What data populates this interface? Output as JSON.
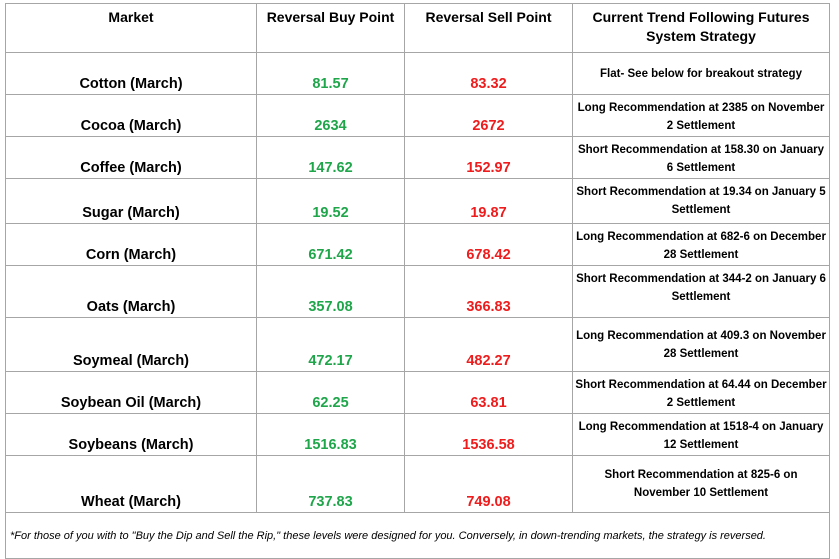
{
  "headers": {
    "market": "Market",
    "buy": "Reversal Buy Point",
    "sell": "Reversal Sell Point",
    "strategy_line1": "Current Trend Following Futures",
    "strategy_line2": "System Strategy"
  },
  "rows": [
    {
      "market": "Cotton (March)",
      "buy": "81.57",
      "sell": "83.32",
      "strategy": "Flat- See below for breakout strategy"
    },
    {
      "market": "Cocoa (March)",
      "buy": "2634",
      "sell": "2672",
      "strategy": "Long Recommendation at 2385 on November 2 Settlement"
    },
    {
      "market": "Coffee (March)",
      "buy": "147.62",
      "sell": "152.97",
      "strategy": "Short Recommendation at 158.30 on January 6 Settlement"
    },
    {
      "market": "Sugar (March)",
      "buy": "19.52",
      "sell": "19.87",
      "strategy": "Short Recommendation at 19.34 on January 5 Settlement"
    },
    {
      "market": "Corn (March)",
      "buy": "671.42",
      "sell": "678.42",
      "strategy": "Long Recommendation at 682-6 on December 28 Settlement"
    },
    {
      "market": "Oats (March)",
      "buy": "357.08",
      "sell": "366.83",
      "strategy": "Short Recommendation at 344-2 on January 6 Settlement"
    },
    {
      "market": "Soymeal (March)",
      "buy": "472.17",
      "sell": "482.27",
      "strategy": "Long Recommendation at 409.3 on November 28 Settlement"
    },
    {
      "market": "Soybean Oil (March)",
      "buy": "62.25",
      "sell": "63.81",
      "strategy": "Short Recommendation at 64.44 on December 2 Settlement"
    },
    {
      "market": "Soybeans (March)",
      "buy": "1516.83",
      "sell": "1536.58",
      "strategy": "Long Recommendation at 1518-4 on January 12 Settlement"
    },
    {
      "market": "Wheat (March)",
      "buy": "737.83",
      "sell": "749.08",
      "strategy": "Short Recommendation at 825-6 on November 10 Settlement"
    }
  ],
  "footnote": "*For those of you with to \"Buy the Dip and Sell the Rip,\" these levels were designed for you. Conversely, in down-trending markets, the strategy is reversed.",
  "colors": {
    "buy": "#1fa54a",
    "sell": "#ee1c1c",
    "border": "#a6a6a6"
  }
}
